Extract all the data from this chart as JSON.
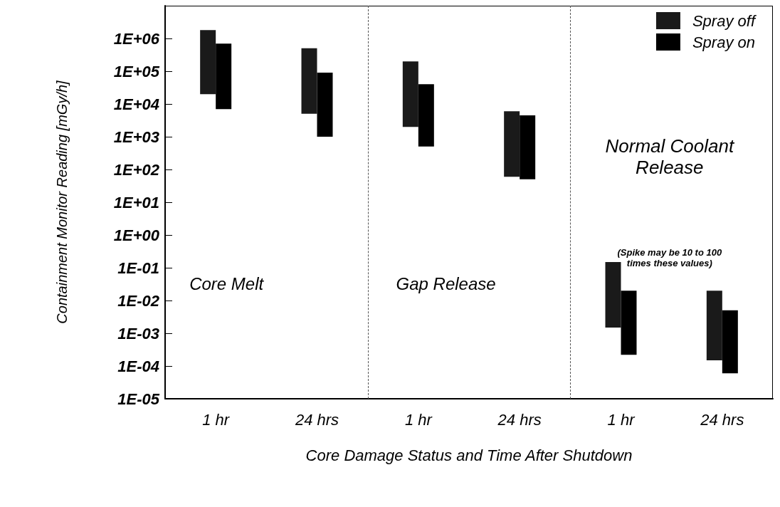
{
  "chart_data": {
    "type": "bar",
    "xlabel": "Core Damage Status and Time After Shutdown",
    "ylabel": "Containment Monitor Reading [mGy/h]",
    "categories": [
      "1 hr",
      "24 hrs",
      "1 hr",
      "24 hrs",
      "1 hr",
      "24 hrs"
    ],
    "series": [
      {
        "name": "Spray off",
        "color": "#1a1a1a",
        "base": [
          20000,
          5000,
          2000,
          60,
          0.0015,
          0.00015
        ],
        "values": [
          1780000,
          495000,
          198000,
          5940,
          0.1485,
          0.01985
        ]
      },
      {
        "name": "Spray on",
        "color": "#000000",
        "base": [
          7000,
          1000,
          500,
          50,
          0.00022,
          6e-05
        ],
        "values": [
          693000,
          89000,
          39500,
          4450,
          0.01978,
          0.00494
        ]
      }
    ],
    "log": "y",
    "ylim": [
      1e-05,
      10000000
    ],
    "yticks": [
      {
        "value": 1e-05,
        "label": "1E-05"
      },
      {
        "value": 0.0001,
        "label": "1E-04"
      },
      {
        "value": 0.001,
        "label": "1E-03"
      },
      {
        "value": 0.01,
        "label": "1E-02"
      },
      {
        "value": 0.1,
        "label": "1E-01"
      },
      {
        "value": 1,
        "label": "1E+00"
      },
      {
        "value": 10,
        "label": "1E+01"
      },
      {
        "value": 100,
        "label": "1E+02"
      },
      {
        "value": 1000,
        "label": "1E+03"
      },
      {
        "value": 10000,
        "label": "1E+04"
      },
      {
        "value": 100000,
        "label": "1E+05"
      },
      {
        "value": 1000000,
        "label": "1E+06"
      }
    ],
    "legend": "top right",
    "annotations": [
      "Core Melt",
      "Gap Release",
      "Normal Coolant\nRelease",
      "(Spike may be 10 to 100\ntimes these values)"
    ]
  }
}
